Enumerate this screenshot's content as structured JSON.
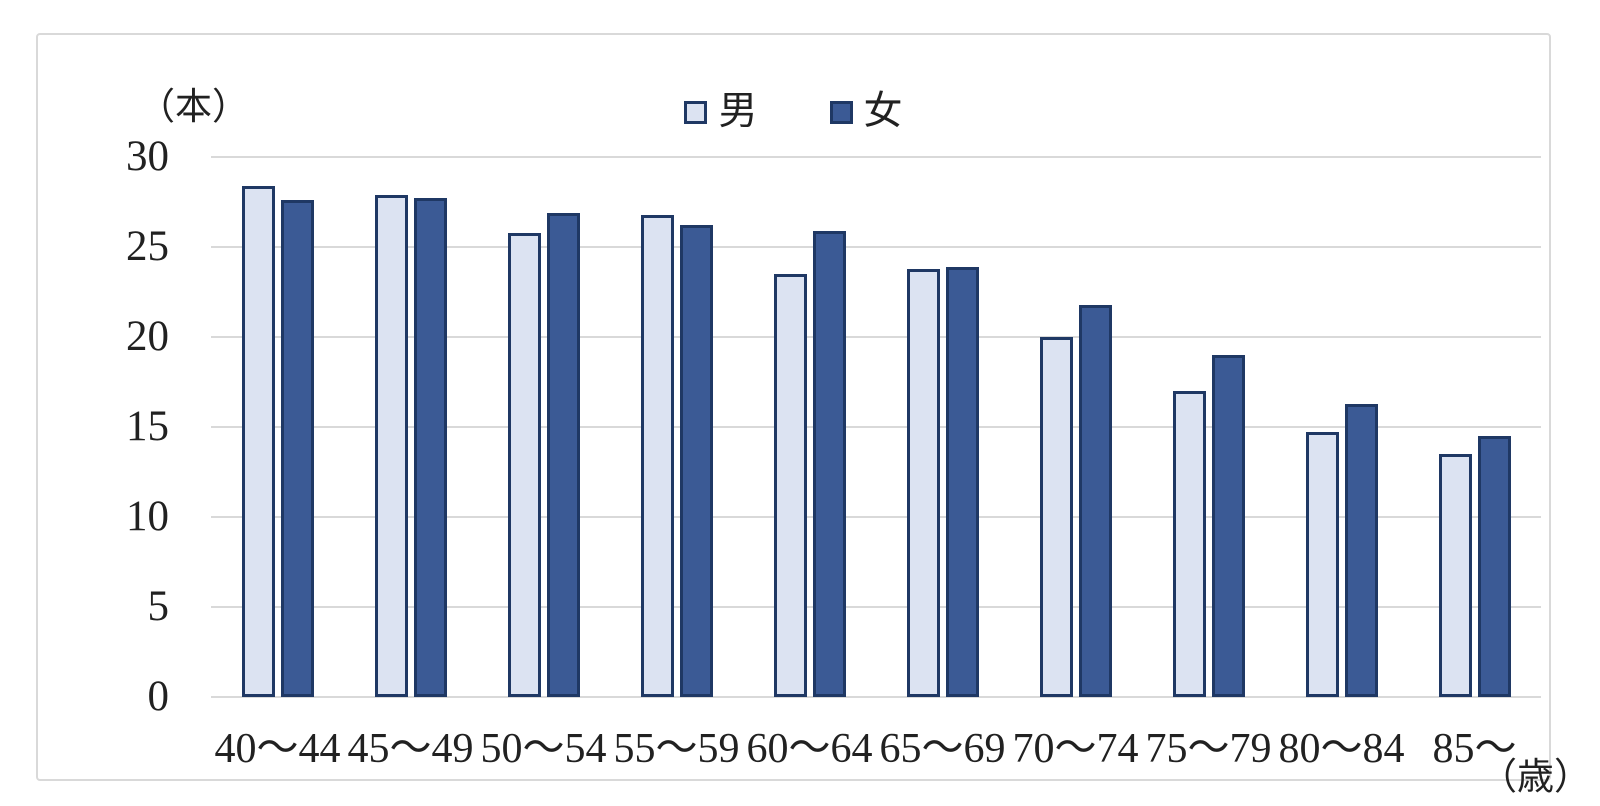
{
  "chart_data": {
    "type": "bar",
    "title": "",
    "y_axis_unit": "（本）",
    "x_axis_unit": "（歳）",
    "categories": [
      "40～44",
      "45～49",
      "50～54",
      "55～59",
      "60～64",
      "65～69",
      "70～74",
      "75～79",
      "80～84",
      "85～"
    ],
    "series": [
      {
        "name": "男",
        "fill": "#dce3f2",
        "values": [
          28.4,
          27.9,
          25.8,
          26.8,
          23.5,
          23.8,
          20.0,
          17.0,
          14.7,
          13.5
        ]
      },
      {
        "name": "女",
        "fill": "#3b5a95",
        "values": [
          27.6,
          27.7,
          26.9,
          26.2,
          25.9,
          23.9,
          21.8,
          19.0,
          16.3,
          14.5
        ]
      }
    ],
    "yticks": [
      0,
      5,
      10,
      15,
      20,
      25,
      30
    ],
    "ylim": [
      0,
      30
    ],
    "grid": true,
    "legend_position": "top-center",
    "colors": {
      "bar_border": "#1f3864",
      "gridline": "#d9d9d9",
      "frame_border": "#d9d9d9",
      "text": "#212121",
      "background": "#ffffff"
    }
  }
}
